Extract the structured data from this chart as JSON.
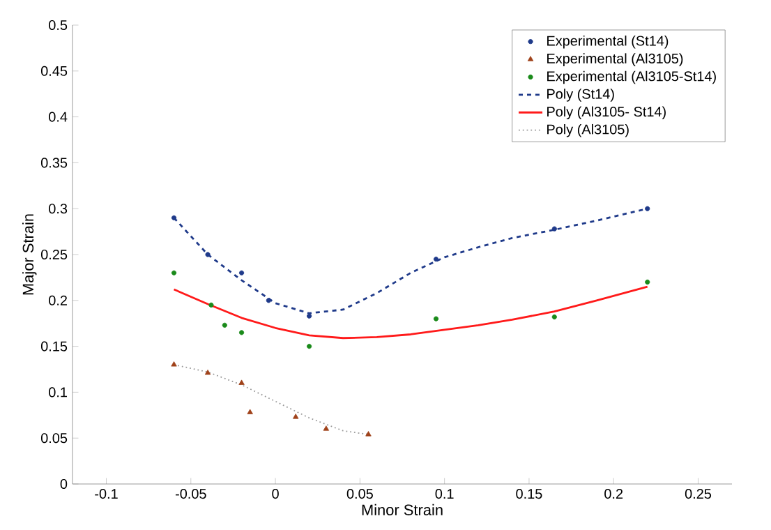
{
  "chart_data": {
    "type": "scatter",
    "xlabel": "Minor Strain",
    "ylabel": "Major Strain",
    "xlim": [
      -0.12,
      0.27
    ],
    "ylim": [
      0,
      0.5
    ],
    "xticks": [
      -0.1,
      -0.05,
      0,
      0.05,
      0.1,
      0.15,
      0.2,
      0.25
    ],
    "yticks": [
      0,
      0.05,
      0.1,
      0.15,
      0.2,
      0.25,
      0.3,
      0.35,
      0.4,
      0.45,
      0.5
    ],
    "grid": false,
    "legend": "top right",
    "series": [
      {
        "name": "Experimental (St14)",
        "marker": "circle",
        "color": "#1f3a8a",
        "x": [
          -0.06,
          -0.04,
          -0.02,
          -0.004,
          0.02,
          0.095,
          0.165,
          0.22
        ],
        "values": [
          0.29,
          0.25,
          0.23,
          0.2,
          0.183,
          0.245,
          0.278,
          0.3
        ]
      },
      {
        "name": "Experimental (Al3105)",
        "marker": "triangle",
        "color": "#a0421a",
        "x": [
          -0.06,
          -0.04,
          -0.02,
          -0.015,
          0.012,
          0.03,
          0.055
        ],
        "values": [
          0.13,
          0.121,
          0.11,
          0.078,
          0.073,
          0.06,
          0.054
        ]
      },
      {
        "name": "Experimental (Al3105-St14)",
        "marker": "circle",
        "color": "#1a8a1a",
        "x": [
          -0.06,
          -0.038,
          -0.03,
          -0.02,
          0.02,
          0.095,
          0.165,
          0.22
        ],
        "values": [
          0.23,
          0.195,
          0.173,
          0.165,
          0.15,
          0.18,
          0.182,
          0.22
        ]
      },
      {
        "name": "Poly (St14)",
        "type": "line",
        "line_style": "dashed",
        "color": "#1f3a8a",
        "x": [
          -0.06,
          -0.04,
          -0.02,
          0,
          0.02,
          0.04,
          0.06,
          0.08,
          0.1,
          0.12,
          0.14,
          0.165,
          0.19,
          0.22
        ],
        "values": [
          0.29,
          0.25,
          0.222,
          0.197,
          0.186,
          0.19,
          0.208,
          0.23,
          0.247,
          0.258,
          0.268,
          0.277,
          0.287,
          0.3
        ]
      },
      {
        "name": "Poly (Al3105- St14)",
        "type": "line",
        "line_style": "solid",
        "color": "#ff1a1a",
        "x": [
          -0.06,
          -0.04,
          -0.02,
          0,
          0.02,
          0.04,
          0.06,
          0.08,
          0.1,
          0.12,
          0.14,
          0.165,
          0.19,
          0.22
        ],
        "values": [
          0.212,
          0.196,
          0.181,
          0.17,
          0.162,
          0.159,
          0.16,
          0.163,
          0.168,
          0.173,
          0.179,
          0.188,
          0.2,
          0.215
        ]
      },
      {
        "name": "Poly (Al3105)",
        "type": "line",
        "line_style": "dotted",
        "color": "#999999",
        "x": [
          -0.06,
          -0.04,
          -0.02,
          0,
          0.02,
          0.04,
          0.055
        ],
        "values": [
          0.13,
          0.122,
          0.108,
          0.09,
          0.072,
          0.058,
          0.054
        ]
      }
    ]
  }
}
